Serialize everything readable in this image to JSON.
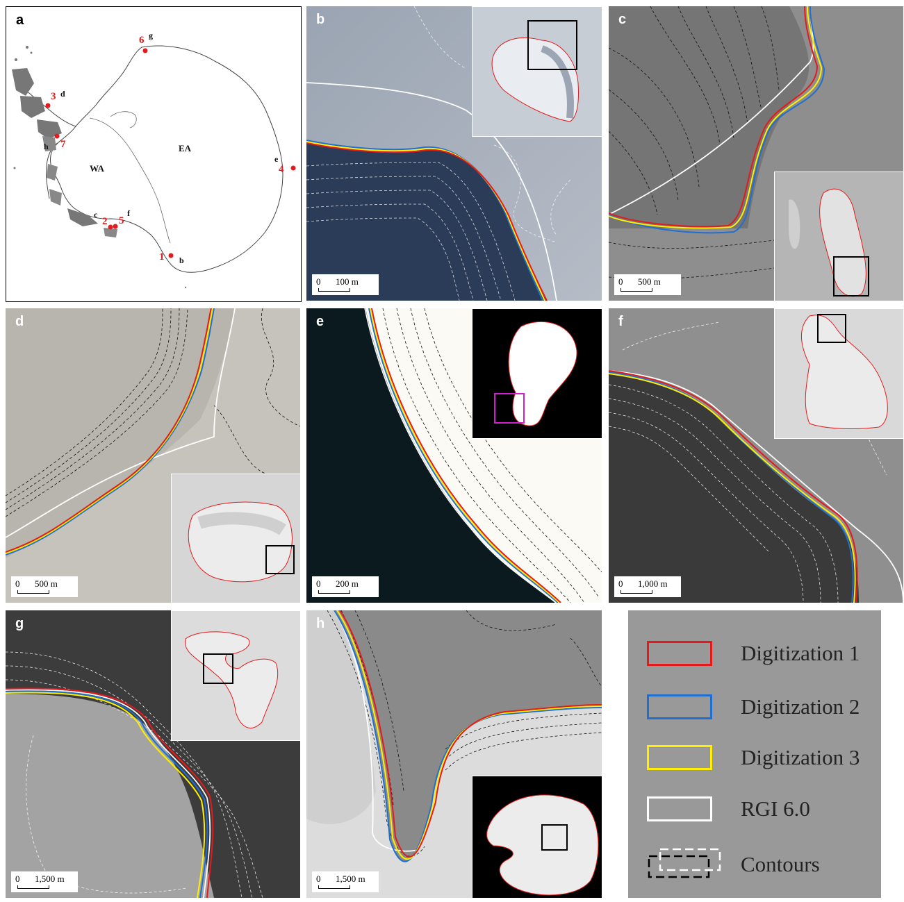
{
  "panels": {
    "a": {
      "label": "a",
      "regions": {
        "wa": "WA",
        "ea": "EA"
      },
      "sites": [
        {
          "num": "1",
          "letter": "b"
        },
        {
          "num": "2",
          "letter": "c"
        },
        {
          "num": "3",
          "letter": "d"
        },
        {
          "num": "4",
          "letter": "e"
        },
        {
          "num": "5",
          "letter": "f"
        },
        {
          "num": "6",
          "letter": "g"
        },
        {
          "num": "7",
          "letter": "h"
        }
      ]
    },
    "b": {
      "label": "b",
      "scale_zero": "0",
      "scale_text": "100 m"
    },
    "c": {
      "label": "c",
      "scale_zero": "0",
      "scale_text": "500 m"
    },
    "d": {
      "label": "d",
      "scale_zero": "0",
      "scale_text": "500 m"
    },
    "e": {
      "label": "e",
      "scale_zero": "0",
      "scale_text": "200 m"
    },
    "f": {
      "label": "f",
      "scale_zero": "0",
      "scale_text": "1,000 m"
    },
    "g": {
      "label": "g",
      "scale_zero": "0",
      "scale_text": "1,500 m"
    },
    "h": {
      "label": "h",
      "scale_zero": "0",
      "scale_text": "1,500 m"
    }
  },
  "legend": {
    "items": [
      {
        "label": "Digitization 1",
        "color": "#e41a1c",
        "style": "solid"
      },
      {
        "label": "Digitization 2",
        "color": "#1f6fd1",
        "style": "solid"
      },
      {
        "label": "Digitization 3",
        "color": "#ffee00",
        "style": "solid"
      },
      {
        "label": "RGI 6.0",
        "color": "#ffffff",
        "style": "solid"
      },
      {
        "label": "Contours",
        "color": "#000000",
        "style": "dashed"
      }
    ]
  }
}
